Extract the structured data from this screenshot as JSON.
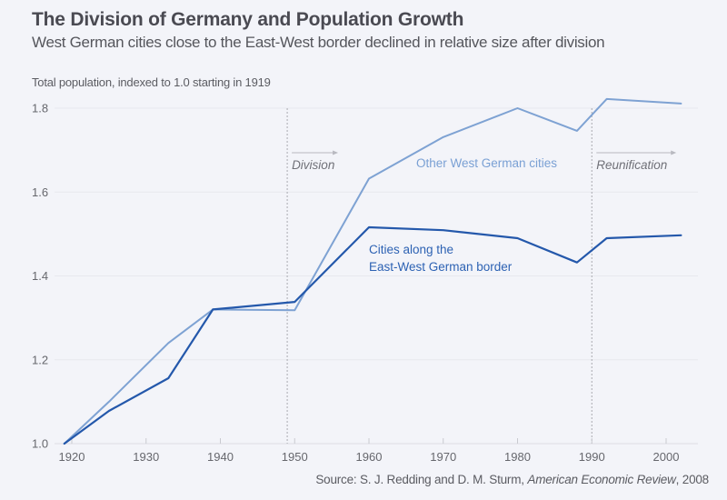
{
  "header": {
    "title": "The Division of Germany and Population Growth",
    "subtitle": "West German cities close to the East-West border declined in relative size after division",
    "ylabel": "Total population, indexed to 1.0 starting in 1919"
  },
  "source": {
    "prefix": "Source: S. J. Redding and D. M. Sturm, ",
    "journal": "American Economic Review",
    "suffix": ", 2008"
  },
  "chart_data": {
    "type": "line",
    "title": "The Division of Germany and Population Growth",
    "subtitle": "West German cities close to the East-West border declined in relative size after division",
    "xlabel": "",
    "ylabel": "Total population, indexed to 1.0 starting in 1919",
    "xlim": [
      1917,
      2004
    ],
    "ylim": [
      1.0,
      1.8
    ],
    "x_ticks": [
      1920,
      1930,
      1940,
      1950,
      1960,
      1970,
      1980,
      1990,
      2000
    ],
    "y_ticks": [
      1.0,
      1.2,
      1.4,
      1.6,
      1.8
    ],
    "y_tick_labels": [
      "1.0",
      "1.2",
      "1.4",
      "1.6",
      "1.8"
    ],
    "grid": "horizontal",
    "x": [
      1919,
      1925,
      1933,
      1939,
      1950,
      1960,
      1970,
      1980,
      1988,
      1992,
      2002
    ],
    "series": [
      {
        "name": "Other West German cities",
        "color": "#7ea2d3",
        "values": [
          1.0,
          1.1,
          1.24,
          1.32,
          1.318,
          1.632,
          1.731,
          1.8,
          1.746,
          1.822,
          1.811
        ]
      },
      {
        "name": "Cities along the East-West German border",
        "label_lines": [
          "Cities along the",
          "East-West German border"
        ],
        "color": "#2458ab",
        "values": [
          1.0,
          1.078,
          1.156,
          1.32,
          1.338,
          1.516,
          1.509,
          1.49,
          1.432,
          1.49,
          1.497
        ]
      }
    ],
    "annotations": [
      {
        "label": "Division",
        "x": 1949,
        "style": "dashed-vertical-with-arrow"
      },
      {
        "label": "Reunification",
        "x": 1990,
        "style": "dashed-vertical-with-arrow"
      }
    ],
    "source": "Source: S. J. Redding and D. M. Sturm, American Economic Review, 2008"
  }
}
